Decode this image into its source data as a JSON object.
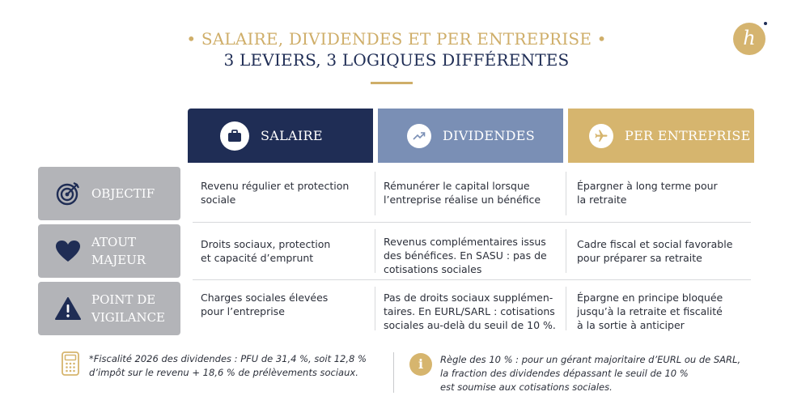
{
  "header": {
    "title_line1": "• SALAIRE, DIVIDENDES ET PER ENTREPRISE •",
    "title_line2": "3 LEVIERS, 3 LOGIQUES DIFFÉRENTES",
    "logo_letter": "h"
  },
  "columns": [
    {
      "label": "SALAIRE",
      "icon": "briefcase-icon",
      "color": "#1f2d55"
    },
    {
      "label": "DIVIDENDES",
      "icon": "trend-up-icon",
      "color": "#7a8fb5"
    },
    {
      "label": "PER ENTREPRISE",
      "icon": "airplane-icon",
      "color": "#d6b56e"
    }
  ],
  "rows": [
    {
      "label_lines": [
        "OBJECTIF"
      ],
      "icon": "target-icon",
      "cells": [
        [
          "Revenu régulier et protection",
          "sociale"
        ],
        [
          "Rémunérer le capital lorsque",
          "l’entreprise réalise un bénéfice"
        ],
        [
          "Épargner à long terme pour",
          "la retraite"
        ]
      ]
    },
    {
      "label_lines": [
        "ATOUT",
        "MAJEUR"
      ],
      "icon": "heart-icon",
      "cells": [
        [
          "Droits sociaux, protection",
          "et capacité d’emprunt"
        ],
        [
          "Revenus complémentaires issus",
          "des bénéfices. En SASU : pas de",
          "cotisations sociales"
        ],
        [
          "Cadre fiscal et social favorable",
          "pour préparer sa retraite"
        ]
      ]
    },
    {
      "label_lines": [
        "POINT DE",
        "VIGILANCE"
      ],
      "icon": "warning-icon",
      "cells": [
        [
          "Charges sociales élevées",
          "pour l’entreprise"
        ],
        [
          "Pas de droits sociaux supplémen-",
          "taires. En EURL/SARL : cotisations",
          "sociales au-delà du seuil de 10 %."
        ],
        [
          "Épargne en principe bloquée",
          "jusqu’à la retraite et fiscalité",
          "à la sortie à anticiper"
        ]
      ]
    }
  ],
  "footnotes": {
    "left_icon": "calculator-icon",
    "left_lines": [
      "*Fiscalité 2026 des dividendes : PFU de 31,4 %, soit 12,8 %",
      "d’impôt sur le revenu + 18,6 % de prélèvements sociaux."
    ],
    "right_icon": "info-icon",
    "right_icon_glyph": "i",
    "right_lines": [
      "Règle des 10 % : pour un gérant majoritaire d’EURL ou de SARL,",
      "la fraction des dividendes dépassant le seuil de 10 %",
      "est soumise aux cotisations sociales."
    ]
  }
}
